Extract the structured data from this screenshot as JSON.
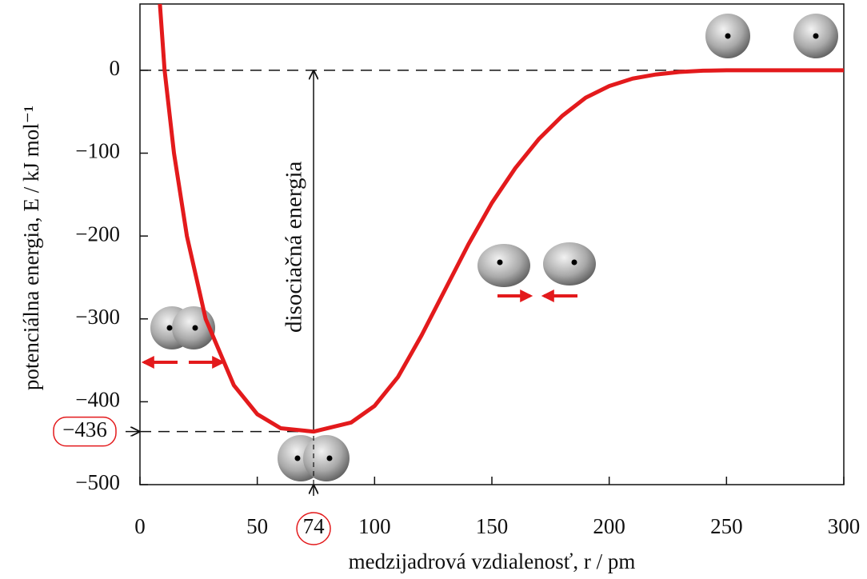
{
  "chart_data": {
    "type": "line",
    "xlabel": "medzijadrová vzdialenosť, r / pm",
    "ylabel": "potenciálna energia, E / kJ mol⁻¹",
    "annotation": "disociačná energia",
    "equilibrium": {
      "r": 74,
      "E": -436
    },
    "color": "#e31a1c",
    "x": [
      8.5,
      10.5,
      14.5,
      20,
      28,
      40,
      50,
      60,
      74,
      90,
      100,
      110,
      120,
      130,
      140,
      150,
      160,
      170,
      180,
      190,
      200,
      210,
      220,
      230,
      240,
      250,
      275,
      300
    ],
    "values": [
      80,
      0,
      -100,
      -200,
      -300,
      -380,
      -415,
      -432,
      -436,
      -425,
      -405,
      -370,
      -320,
      -265,
      -210,
      -160,
      -118,
      -83,
      -55,
      -33,
      -19,
      -10,
      -5,
      -2,
      -0.5,
      0,
      0,
      0
    ],
    "xlim": [
      0,
      300
    ],
    "xticks": [
      0,
      50,
      100,
      150,
      200,
      250,
      300
    ],
    "ylim": [
      -500,
      80
    ],
    "yticks": [
      {
        "value": -500,
        "label": "−500"
      },
      {
        "value": -400,
        "label": "−400"
      },
      {
        "value": -300,
        "label": "−300"
      },
      {
        "value": -200,
        "label": "−200"
      },
      {
        "value": -100,
        "label": "−100"
      },
      0
    ],
    "equilibrium_labels": {
      "r": "74",
      "E": "−436"
    }
  }
}
